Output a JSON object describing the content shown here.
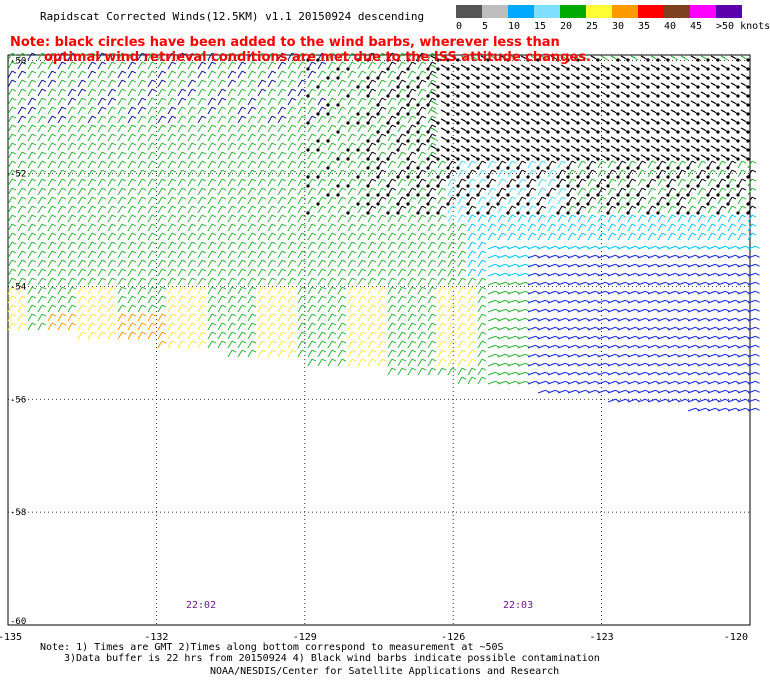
{
  "title": "Rapidscat Corrected Winds(12.5KM) v1.1 20150924 descending",
  "note": "Note: black circles have been added to the wind barbs, wherever less than optimal wind retrieval conditions are met due to the ISS attitude changes.",
  "legend": {
    "bins": [
      {
        "label": "0",
        "color": "#555555"
      },
      {
        "label": "5",
        "color": "#bdbdbd"
      },
      {
        "label": "10",
        "color": "#00a8ff"
      },
      {
        "label": "15",
        "color": "#7fdfff"
      },
      {
        "label": "20",
        "color": "#00aa00"
      },
      {
        "label": "25",
        "color": "#ffff33"
      },
      {
        "label": "30",
        "color": "#ff9900"
      },
      {
        "label": "35",
        "color": "#ff0000"
      },
      {
        "label": "40",
        "color": "#7f4020"
      },
      {
        "label": "45",
        "color": "#ff00ff"
      },
      {
        "label": ">50 knots",
        "color": "#5a00aa"
      }
    ]
  },
  "axes": {
    "lon_ticks": [
      "-135",
      "-132",
      "-129",
      "-126",
      "-123",
      "-120"
    ],
    "lat_ticks": [
      "-50",
      "-52",
      "-54",
      "-56",
      "-58",
      "-60"
    ]
  },
  "time_labels": [
    "22:02",
    "22:03"
  ],
  "footnotes": [
    "Note: 1) Times are GMT 2)Times along bottom correspond to measurement at ~50S",
    "3)Data buffer is 22 hrs from 20150924 4) Black wind barbs indicate possible contamination"
  ],
  "credit": "NOAA/NESDIS/Center for Satellite Applications and Research"
}
